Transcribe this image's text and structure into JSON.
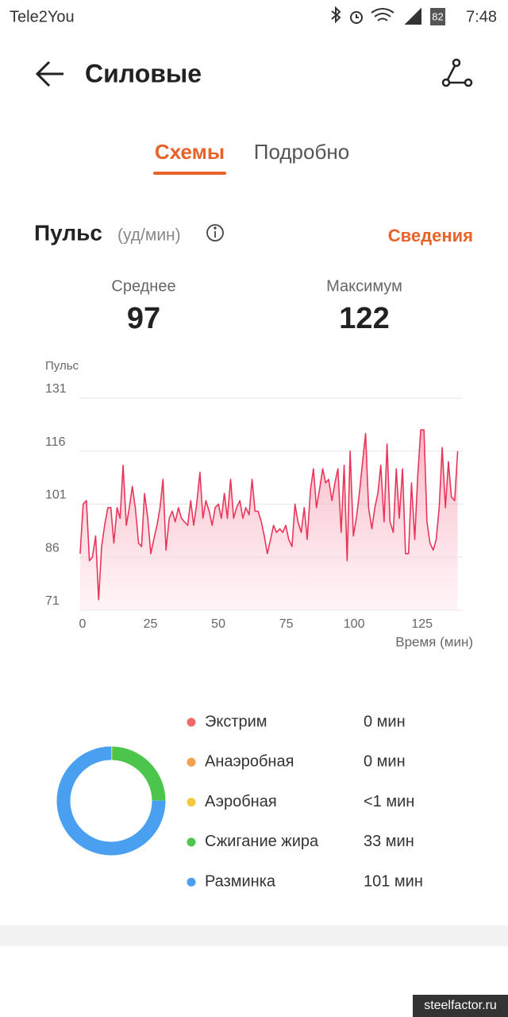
{
  "status_bar": {
    "carrier": "Tele2You",
    "battery": "82",
    "time": "7:48"
  },
  "header": {
    "title": "Силовые"
  },
  "tabs": [
    "Схемы",
    "Подробно"
  ],
  "section": {
    "title": "Пульс",
    "unit": "(уд/мин)",
    "link": "Сведения"
  },
  "stats": [
    {
      "label": "Среднее",
      "value": 97
    },
    {
      "label": "Максимум",
      "value": 122
    }
  ],
  "chart_data": [
    {
      "type": "line",
      "y_label": "Пульс",
      "x_label": "Время (мин)",
      "color": "#e8365a",
      "fill": true,
      "grid": true,
      "xlim": [
        0,
        140
      ],
      "ylim": [
        71,
        131
      ],
      "xticks": [
        0,
        25,
        50,
        75,
        100,
        125
      ],
      "yticks": [
        71,
        86,
        101,
        116,
        131
      ],
      "x": [
        0,
        1.1,
        2.3,
        3.4,
        4.5,
        5.7,
        6.8,
        7.9,
        9.0,
        10.2,
        11.3,
        12.4,
        13.6,
        14.7,
        15.8,
        17.0,
        18.1,
        19.2,
        20.3,
        21.5,
        22.6,
        23.7,
        24.9,
        26.0,
        27.1,
        28.3,
        29.4,
        30.5,
        31.6,
        32.8,
        33.9,
        35.0,
        36.2,
        37.3,
        38.4,
        39.6,
        40.7,
        41.8,
        42.9,
        44.1,
        45.2,
        46.3,
        47.5,
        48.6,
        49.7,
        50.9,
        52.0,
        53.1,
        54.2,
        55.4,
        56.5,
        57.6,
        58.8,
        59.9,
        61.0,
        62.2,
        63.3,
        64.4,
        65.5,
        66.7,
        67.8,
        68.9,
        70.1,
        71.2,
        72.3,
        73.5,
        74.6,
        75.7,
        76.8,
        78.0,
        79.1,
        80.2,
        81.4,
        82.5,
        83.6,
        84.8,
        85.9,
        87.0,
        88.1,
        89.3,
        90.4,
        91.5,
        92.7,
        93.8,
        94.9,
        96.1,
        97.2,
        98.3,
        99.4,
        100.6,
        101.7,
        102.8,
        104.0,
        105.1,
        106.2,
        107.4,
        108.5,
        109.6,
        110.7,
        111.9,
        113.0,
        114.1,
        115.3,
        116.4,
        117.5,
        118.7,
        119.8,
        120.9,
        122.0,
        123.2,
        124.3,
        125.4,
        126.6,
        127.7,
        128.8,
        130.0,
        131.1,
        132.2,
        133.3,
        134.5,
        135.6,
        136.7,
        137.9,
        139.0
      ],
      "values": [
        87,
        101,
        102,
        85,
        86,
        92,
        74,
        89,
        95,
        100,
        100,
        90,
        100,
        97,
        112,
        95,
        100,
        106,
        100,
        90,
        89,
        104,
        97,
        87,
        91,
        95,
        100,
        108,
        88,
        97,
        99,
        96,
        100,
        97,
        96,
        95,
        102,
        95,
        101,
        110,
        97,
        102,
        99,
        95,
        100,
        101,
        97,
        104,
        97,
        108,
        97,
        100,
        102,
        97,
        100,
        98,
        108,
        99,
        99,
        96,
        92,
        87,
        91,
        95,
        93,
        94,
        93,
        95,
        91,
        89,
        101,
        96,
        93,
        100,
        91,
        105,
        111,
        100,
        105,
        111,
        107,
        108,
        102,
        107,
        111,
        93,
        112,
        85,
        116,
        92,
        97,
        104,
        113,
        121,
        100,
        94,
        100,
        104,
        112,
        96,
        118,
        96,
        93,
        111,
        97,
        111,
        87,
        87,
        107,
        91,
        109,
        122,
        122,
        96,
        90,
        88,
        91,
        100,
        117,
        100,
        113,
        103,
        102,
        116
      ]
    },
    {
      "type": "pie",
      "categories": [
        "Экстрим",
        "Анаэробная",
        "Аэробная",
        "Сжигание жира",
        "Разминка"
      ],
      "values": [
        0,
        0,
        0.5,
        33,
        101
      ],
      "value_labels": [
        "0 мин",
        "0 мин",
        "<1 мин",
        "33 мин",
        "101 мин"
      ],
      "colors": [
        "#f06a6a",
        "#f5a04f",
        "#f5c842",
        "#4cc54c",
        "#4aa0f0"
      ]
    }
  ],
  "watermark": "steelfactor.ru"
}
